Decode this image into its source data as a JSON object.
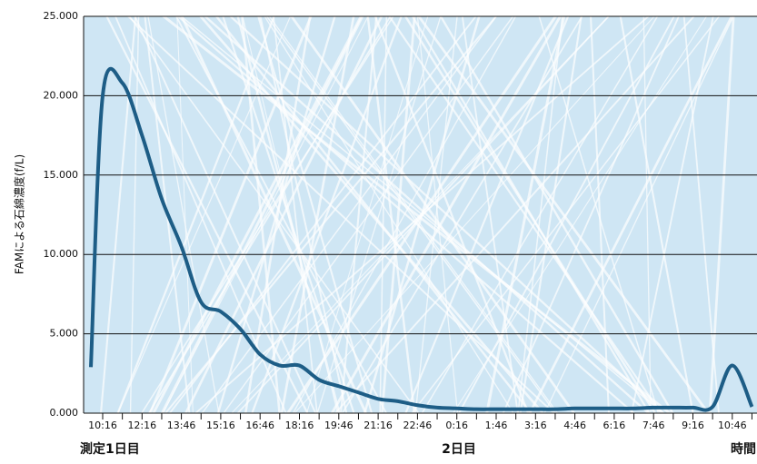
{
  "chart_data": {
    "type": "line",
    "y_label": "FAMによる石綿濃度(f/L)",
    "categories": [
      null,
      "10:16",
      null,
      "12:16",
      null,
      "13:46",
      null,
      "15:16",
      null,
      "16:46",
      null,
      "18:16",
      null,
      "19:46",
      null,
      "21:16",
      null,
      "22:46",
      null,
      "0:16",
      null,
      "1:46",
      null,
      "3:16",
      null,
      "4:46",
      null,
      "6:16",
      null,
      "7:46",
      null,
      "9:16",
      null,
      "10:46",
      null
    ],
    "values": [
      2.9,
      20,
      20.8,
      17.5,
      13.5,
      10.5,
      7.0,
      6.4,
      5.3,
      3.7,
      3.0,
      3.0,
      2.1,
      1.7,
      1.3,
      0.9,
      0.75,
      0.5,
      0.35,
      0.3,
      0.25,
      0.25,
      0.25,
      0.25,
      0.25,
      0.3,
      0.3,
      0.3,
      0.3,
      0.35,
      0.35,
      0.35,
      0.4,
      3.0,
      0.4
    ],
    "color": "#1d5d86",
    "ylim": [
      0,
      25
    ],
    "yticks": [
      {
        "value": 0,
        "label": "0.000"
      },
      {
        "value": 5,
        "label": "5.000"
      },
      {
        "value": 10,
        "label": "10.000"
      },
      {
        "value": 15,
        "label": "15.000"
      },
      {
        "value": 20,
        "label": "20.000"
      },
      {
        "value": 25,
        "label": "25.000"
      }
    ],
    "grid": true,
    "annotations": [
      "測定1日目",
      "2日目",
      "時間"
    ]
  }
}
